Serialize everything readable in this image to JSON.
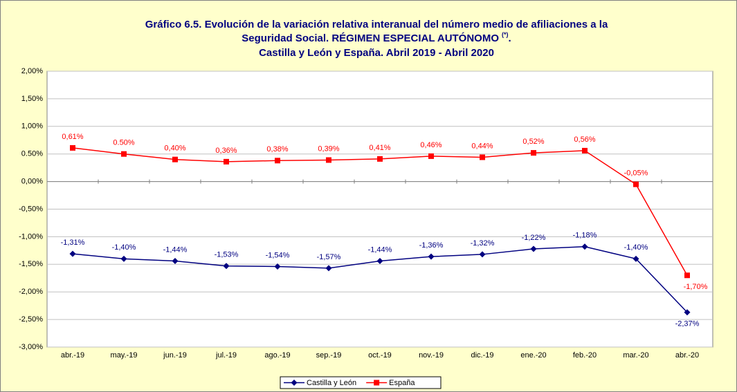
{
  "chart_data": {
    "type": "line",
    "title_lines": [
      "Gráfico 6.5. Evolución de la variación relativa interanual del número medio de  afiliaciones a la",
      "Seguridad Social. RÉGIMEN ESPECIAL AUTÓNOMO",
      "Castilla y León y España. Abril 2019 - Abril 2020"
    ],
    "title_note": "(*)",
    "title_line2_end": ".",
    "categories": [
      "abr.-19",
      "may.-19",
      "jun.-19",
      "jul.-19",
      "ago.-19",
      "sep.-19",
      "oct.-19",
      "nov.-19",
      "dic.-19",
      "ene.-20",
      "feb.-20",
      "mar.-20",
      "abr.-20"
    ],
    "series": [
      {
        "name": "Castilla y León",
        "color": "#000080",
        "marker": "diamond",
        "values": [
          -1.31,
          -1.4,
          -1.44,
          -1.53,
          -1.54,
          -1.57,
          -1.44,
          -1.36,
          -1.32,
          -1.22,
          -1.18,
          -1.4,
          -2.37
        ],
        "value_labels": [
          "-1,31%",
          "-1,40%",
          "-1,44%",
          "-1,53%",
          "-1,54%",
          "-1,57%",
          "-1,44%",
          "-1,36%",
          "-1,32%",
          "-1,22%",
          "-1,18%",
          "-1,40%",
          "-2,37%"
        ]
      },
      {
        "name": "España",
        "color": "#ff0000",
        "marker": "square",
        "values": [
          0.61,
          0.5,
          0.4,
          0.36,
          0.38,
          0.39,
          0.41,
          0.46,
          0.44,
          0.52,
          0.56,
          -0.05,
          -1.7
        ],
        "value_labels": [
          "0,61%",
          "0.50%",
          "0,40%",
          "0,36%",
          "0,38%",
          "0,39%",
          "0,41%",
          "0,46%",
          "0,44%",
          "0,52%",
          "0,56%",
          "-0,05%",
          "-1,70%"
        ]
      }
    ],
    "ylim": [
      -3,
      2
    ],
    "yticks": [
      {
        "value": -3,
        "label": "-3,00%"
      },
      {
        "value": -2.5,
        "label": "-2,50%"
      },
      {
        "value": -2,
        "label": "-2,00%"
      },
      {
        "value": -1.5,
        "label": "-1,50%"
      },
      {
        "value": -1,
        "label": "-1,00%"
      },
      {
        "value": -0.5,
        "label": "-0,50%"
      },
      {
        "value": 0,
        "label": "0,00%"
      },
      {
        "value": 0.5,
        "label": "0.50%"
      },
      {
        "value": 1,
        "label": "1,00%"
      },
      {
        "value": 1.5,
        "label": "1,50%"
      },
      {
        "value": 2,
        "label": "2,00%"
      }
    ],
    "grid": true,
    "legend": "bottom"
  }
}
